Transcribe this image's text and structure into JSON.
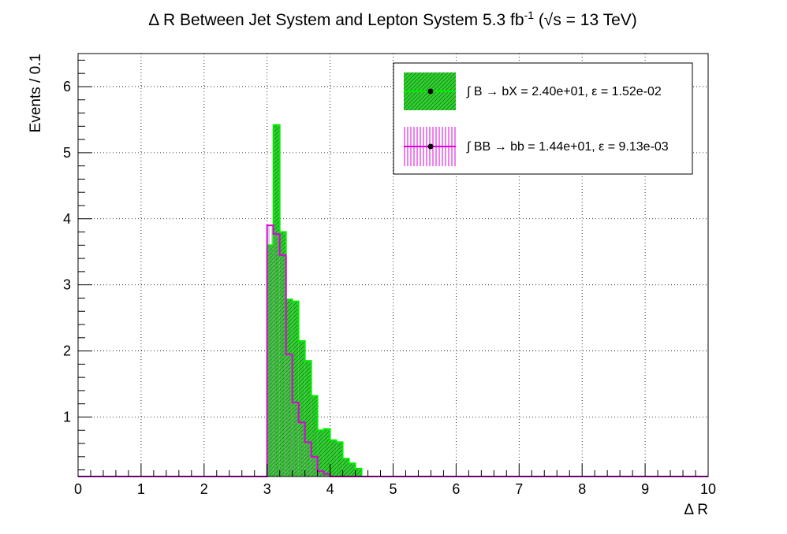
{
  "chart_data": {
    "type": "bar",
    "title": "Δ R Between Jet System and Lepton System 5.3 fb",
    "title_sup": "-1",
    "title_tail": " (√s = 13 TeV)",
    "xlabel": "Δ R",
    "ylabel": "Events / 0.1",
    "xlim": [
      0,
      10
    ],
    "ylim": [
      0.1,
      6.5
    ],
    "x_ticks": [
      0,
      1,
      2,
      3,
      4,
      5,
      6,
      7,
      8,
      9,
      10
    ],
    "y_ticks": [
      1,
      2,
      3,
      4,
      5,
      6
    ],
    "grid": true,
    "legend_position": "top-right",
    "bin_width": 0.1,
    "series": [
      {
        "name": "∫ B → bX = 2.40e+01, ε = 1.52e-02",
        "color": "#00ee00",
        "fill": "#33cc33",
        "bin_lows": [
          3.0,
          3.1,
          3.2,
          3.3,
          3.4,
          3.5,
          3.6,
          3.7,
          3.8,
          3.9,
          4.0,
          4.1,
          4.2,
          4.3,
          4.4
        ],
        "values": [
          3.6,
          5.42,
          3.8,
          2.78,
          2.75,
          2.15,
          1.85,
          1.32,
          0.8,
          0.82,
          0.65,
          0.62,
          0.37,
          0.3,
          0.22
        ]
      },
      {
        "name": "∫ BB → bb = 1.44e+01, ε = 9.13e-03",
        "color": "#dd00dd",
        "bin_lows": [
          3.0,
          3.1,
          3.2,
          3.3,
          3.4,
          3.5,
          3.6,
          3.7,
          3.8,
          3.9
        ],
        "values": [
          3.9,
          3.77,
          3.45,
          1.95,
          1.22,
          0.92,
          0.62,
          0.4,
          0.18,
          0.14
        ]
      }
    ]
  }
}
